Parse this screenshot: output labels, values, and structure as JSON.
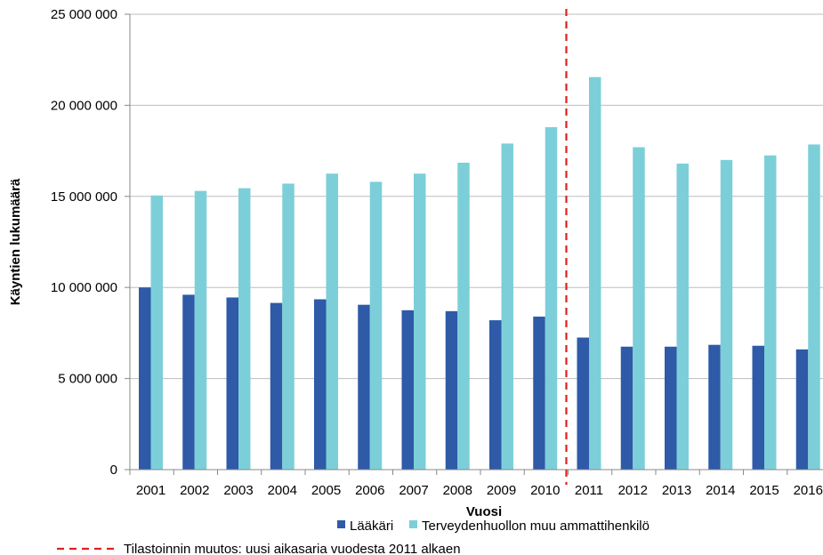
{
  "chart_data": {
    "type": "bar",
    "xlabel": "Vuosi",
    "ylabel": "Käyntien lukumäärä",
    "ylim": [
      0,
      25000000
    ],
    "y_ticks": [
      0,
      5000000,
      10000000,
      15000000,
      20000000,
      25000000
    ],
    "y_tick_labels": [
      "0",
      "5 000 000",
      "10 000 000",
      "15 000 000",
      "20 000 000",
      "25 000 000"
    ],
    "categories": [
      "2001",
      "2002",
      "2003",
      "2004",
      "2005",
      "2006",
      "2007",
      "2008",
      "2009",
      "2010",
      "2011",
      "2012",
      "2013",
      "2014",
      "2015",
      "2016"
    ],
    "series": [
      {
        "name": "Lääkäri",
        "color": "#2e5aa8",
        "values": [
          10000000,
          9600000,
          9450000,
          9150000,
          9350000,
          9050000,
          8750000,
          8700000,
          8200000,
          8400000,
          7250000,
          6750000,
          6750000,
          6850000,
          6800000,
          6600000
        ]
      },
      {
        "name": "Terveydenhuollon muu ammattihenkilö",
        "color": "#7ccfd9",
        "values": [
          15050000,
          15300000,
          15450000,
          15700000,
          16250000,
          15800000,
          16250000,
          16850000,
          17900000,
          18800000,
          21550000,
          17700000,
          16800000,
          17000000,
          17250000,
          17850000
        ]
      }
    ],
    "grid": true,
    "legend_position": "bottom",
    "annotation": {
      "type": "vertical-dashed-line",
      "after_category": "2010",
      "color": "#e02020",
      "label": "Tilastoinnin muutos: uusi aikasaria vuodesta 2011 alkaen"
    }
  }
}
